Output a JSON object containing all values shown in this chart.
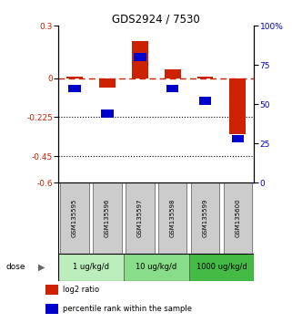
{
  "title": "GDS2924 / 7530",
  "samples": [
    "GSM135595",
    "GSM135596",
    "GSM135597",
    "GSM135598",
    "GSM135599",
    "GSM135600"
  ],
  "log2_ratio": [
    0.008,
    -0.055,
    0.215,
    0.048,
    0.008,
    -0.32
  ],
  "percentile_rank": [
    60,
    44,
    80,
    60,
    52,
    28
  ],
  "dose_groups": [
    {
      "label": "1 ug/kg/d",
      "samples": [
        0,
        1
      ],
      "color": "#bbeebb"
    },
    {
      "label": "10 ug/kg/d",
      "samples": [
        2,
        3
      ],
      "color": "#88dd88"
    },
    {
      "label": "1000 ug/kg/d",
      "samples": [
        4,
        5
      ],
      "color": "#44bb44"
    }
  ],
  "ylim_left": [
    -0.6,
    0.3
  ],
  "ylim_right": [
    0,
    100
  ],
  "yticks_left": [
    0.3,
    0,
    -0.225,
    -0.45,
    -0.6
  ],
  "yticks_right": [
    100,
    75,
    50,
    25,
    0
  ],
  "hlines": [
    -0.225,
    -0.45
  ],
  "bar_color": "#cc2200",
  "square_color": "#0000cc",
  "dashed_line_color": "#cc2200",
  "sample_box_color": "#cccccc",
  "legend_red_label": "log2 ratio",
  "legend_blue_label": "percentile rank within the sample"
}
